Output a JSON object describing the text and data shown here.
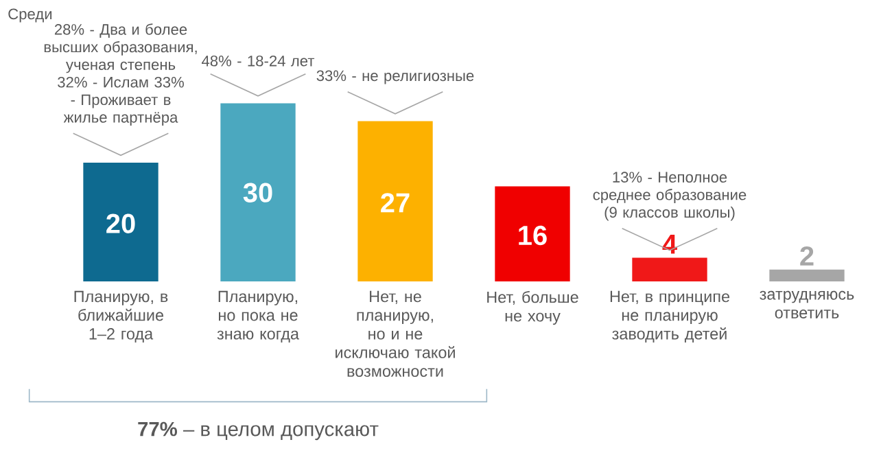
{
  "chart_data": {
    "type": "bar",
    "categories": [
      "Планирую, в ближайшие 1–2 года",
      "Планирую, но пока не знаю когда",
      "Нет, не планирую, но и не исключаю такой возможности",
      "Нет, больше не хочу",
      "Нет, в принципе не планирую заводить детей",
      "затрудняюсь ответить"
    ],
    "values": [
      20,
      30,
      27,
      16,
      4,
      2
    ],
    "colors": [
      "#0e6a90",
      "#4ba8bf",
      "#fdb100",
      "#f00000",
      "#f01818",
      "#a6a6a6"
    ],
    "data_labels": true,
    "tick_labels": "x",
    "annotations": [
      "Среди",
      {
        "text": "28% - Два и более высших образования, ученая степень 32% - Ислам 33% - Проживает в жилье партнёра",
        "x": "Планирую, в ближайшие 1–2 года",
        "y": 20
      },
      {
        "text": "48% - 18-24 лет",
        "x": "Планирую, но пока не знаю когда",
        "y": 30
      },
      {
        "text": "33% - не религиозные",
        "x": "Нет, не планирую, но и не исключаю такой возможности",
        "y": 27
      },
      {
        "text": "13% - Неполное среднее образование (9 классов школы)",
        "x": "Нет, в принципе не планирую заводить детей",
        "y": 4
      },
      "**77%** – в целом допускают"
    ]
  }
}
